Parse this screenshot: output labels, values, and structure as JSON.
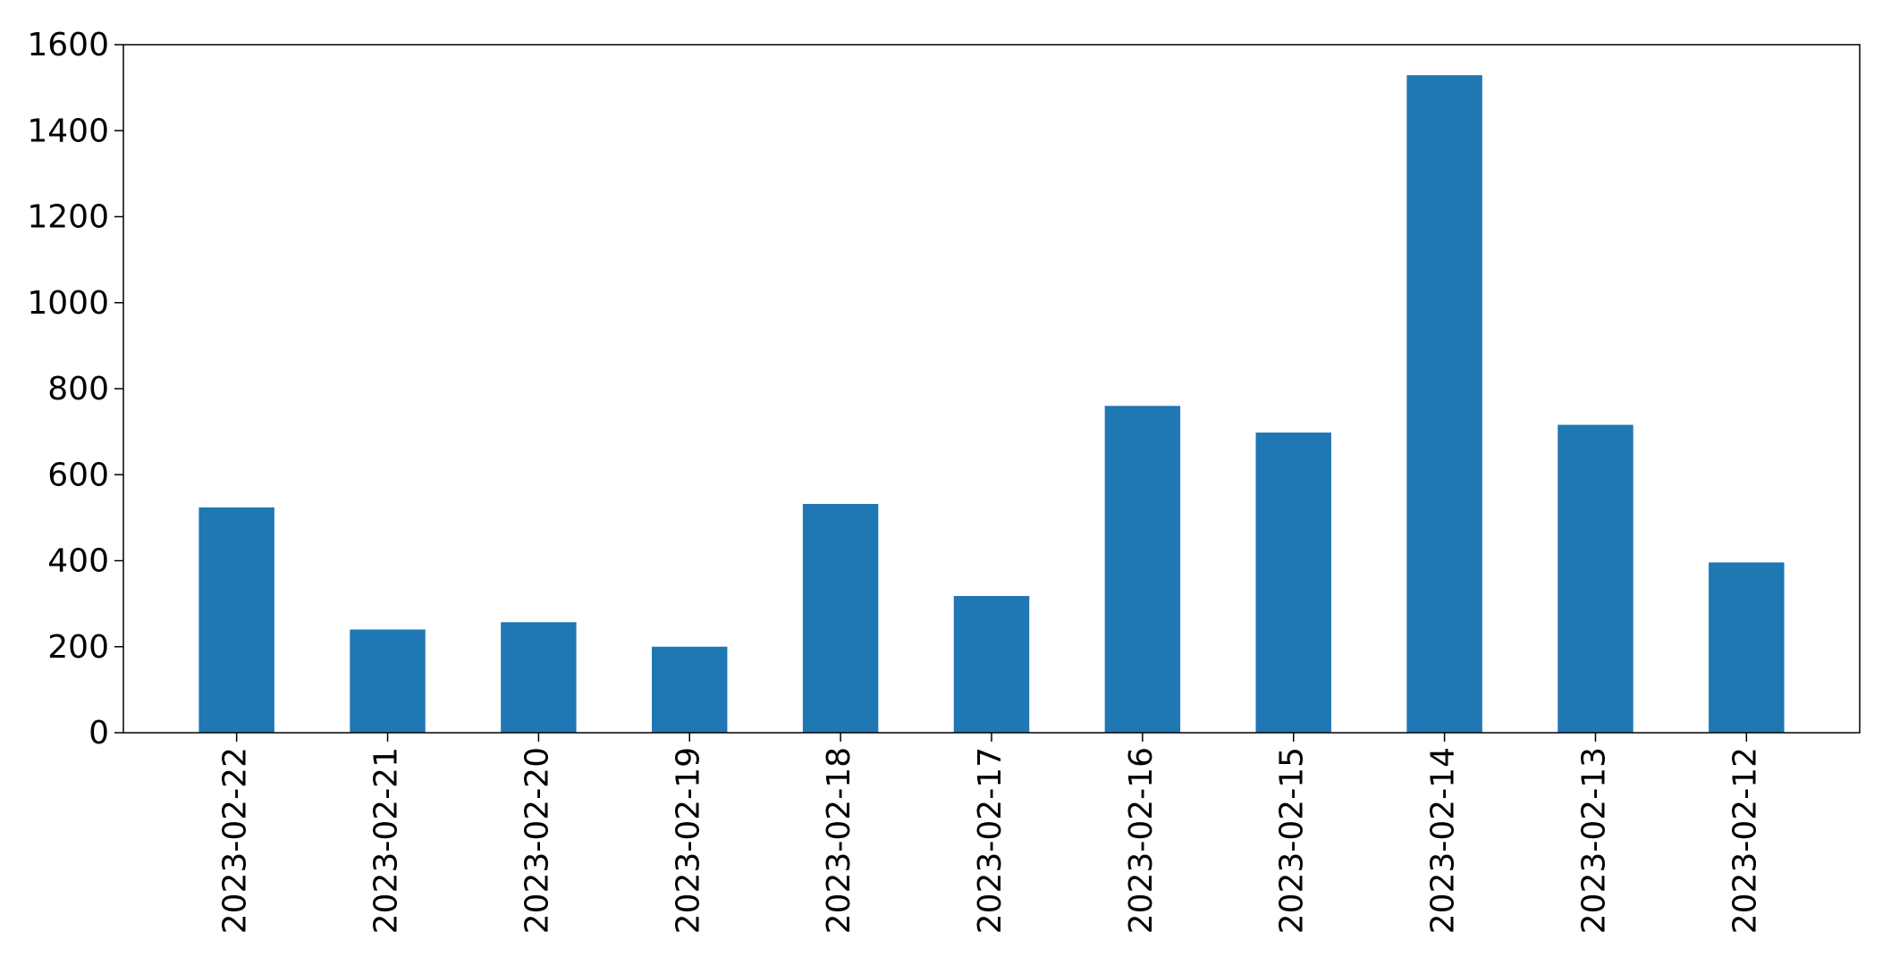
{
  "chart_data": {
    "type": "bar",
    "title": "",
    "xlabel": "",
    "ylabel": "",
    "categories": [
      "2023-02-22",
      "2023-02-21",
      "2023-02-20",
      "2023-02-19",
      "2023-02-18",
      "2023-02-17",
      "2023-02-16",
      "2023-02-15",
      "2023-02-14",
      "2023-02-13",
      "2023-02-12"
    ],
    "values": [
      524,
      240,
      257,
      200,
      532,
      318,
      760,
      698,
      1529,
      716,
      396
    ],
    "ylim": [
      0,
      1600
    ],
    "yticks": [
      0,
      200,
      400,
      600,
      800,
      1000,
      1200,
      1400,
      1600
    ],
    "ytick_labels": [
      "0",
      "200",
      "400",
      "600",
      "800",
      "1000",
      "1200",
      "1400",
      "1600"
    ],
    "bar_color": "#1f77b4",
    "grid": false,
    "legend": "none"
  }
}
